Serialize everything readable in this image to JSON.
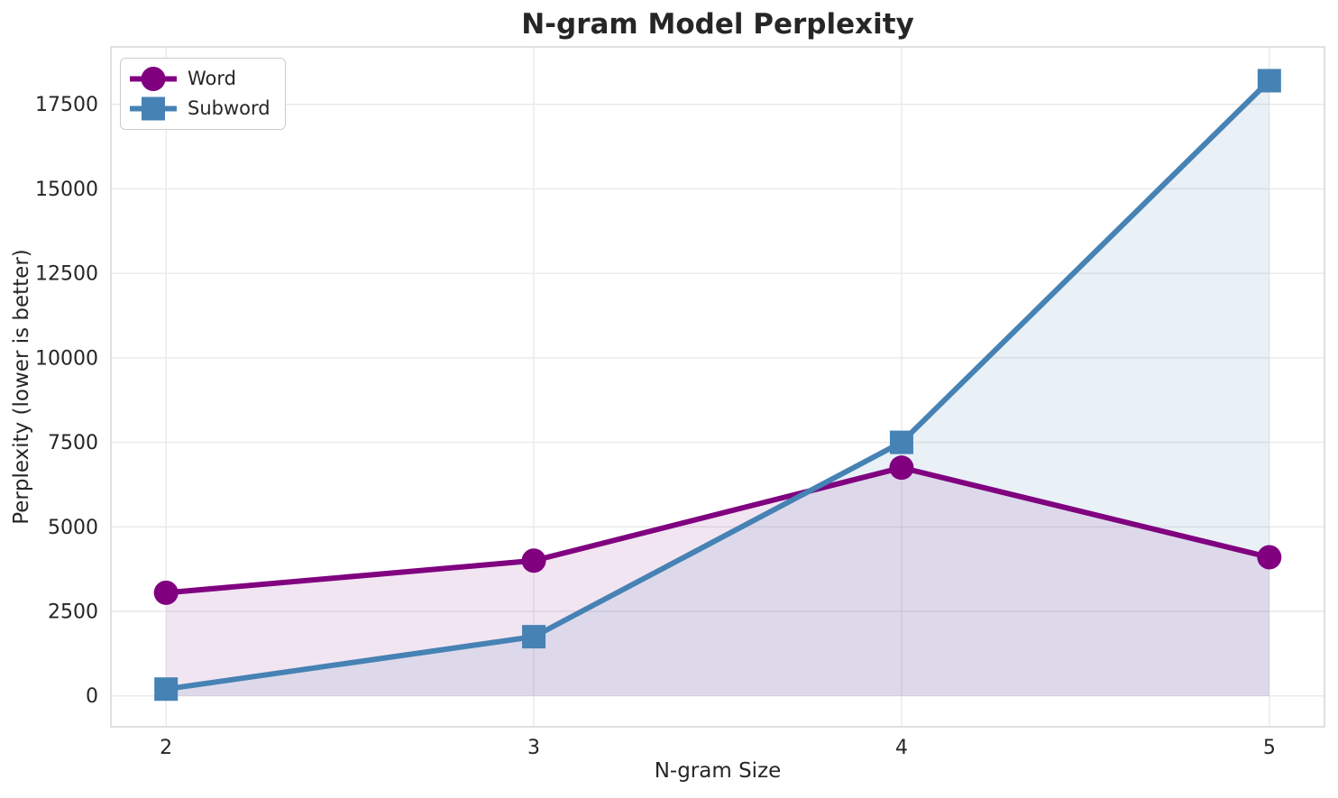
{
  "chart_data": {
    "type": "line",
    "title": "N-gram Model Perplexity",
    "xlabel": "N-gram Size",
    "ylabel": "Perplexity (lower is better)",
    "x": [
      2,
      3,
      4,
      5
    ],
    "xticks": [
      2,
      3,
      4,
      5
    ],
    "yticks": [
      0,
      2500,
      5000,
      7500,
      10000,
      12500,
      15000,
      17500
    ],
    "xlim": [
      1.85,
      5.15
    ],
    "ylim": [
      -915,
      19200
    ],
    "grid": true,
    "legend_position": "upper-left",
    "area_fill": true,
    "series": [
      {
        "name": "Word",
        "values": [
          3050,
          4000,
          6750,
          4100
        ],
        "color": "#800080",
        "marker": "circle",
        "fill_opacity": 0.1
      },
      {
        "name": "Subword",
        "values": [
          200,
          1750,
          7500,
          18200
        ],
        "color": "#4682B4",
        "marker": "square",
        "fill_opacity": 0.12
      }
    ],
    "colors": {
      "grid": "#e9e9e9",
      "frame": "#d9d9d9",
      "text": "#262626",
      "background": "#ffffff"
    }
  }
}
